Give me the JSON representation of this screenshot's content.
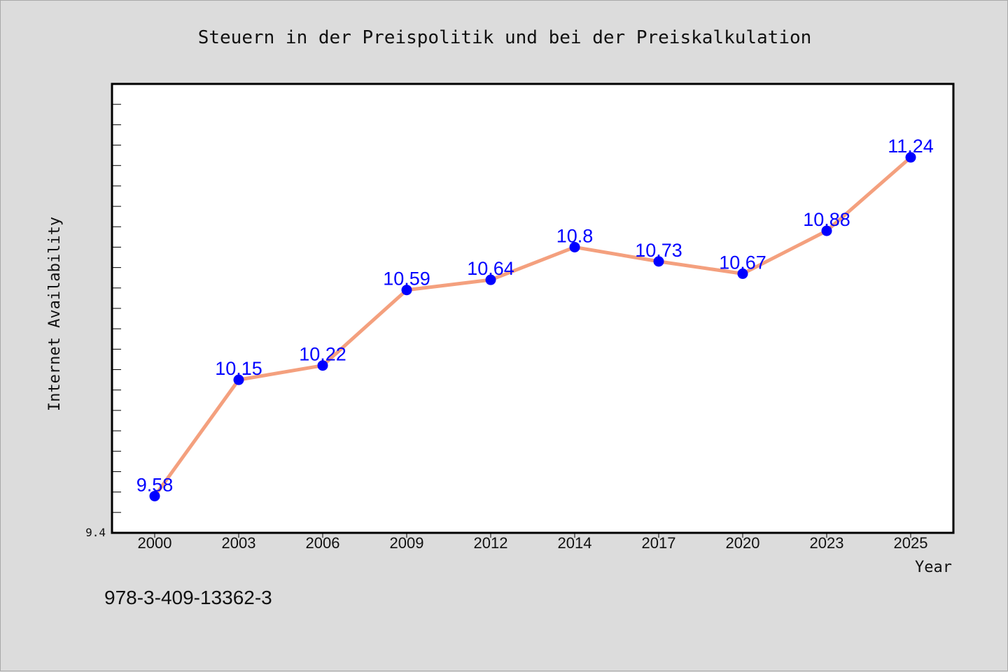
{
  "chart_data": {
    "type": "line",
    "title": "Steuern in der Preispolitik und bei der Preiskalkulation",
    "xlabel": "Year",
    "ylabel": "Internet Availability",
    "categories": [
      "2000",
      "2003",
      "2006",
      "2009",
      "2012",
      "2014",
      "2017",
      "2020",
      "2023",
      "2025"
    ],
    "series": [
      {
        "values": [
          9.58,
          10.15,
          10.22,
          10.59,
          10.64,
          10.8,
          10.73,
          10.67,
          10.88,
          11.24
        ]
      }
    ],
    "data_labels": [
      "9.58",
      "10.15",
      "10.22",
      "10.59",
      "10.64",
      "10.8",
      "10.73",
      "10.67",
      "10.88",
      "11.24"
    ],
    "ylim": [
      9.4,
      11.6
    ],
    "y_tick_label": "9.4",
    "line_color": "#f4a07e",
    "marker_color": "#0000ff",
    "label_color": "#0000ff",
    "grid": false,
    "legend": false
  },
  "footer": {
    "isbn": "978-3-409-13362-3"
  }
}
